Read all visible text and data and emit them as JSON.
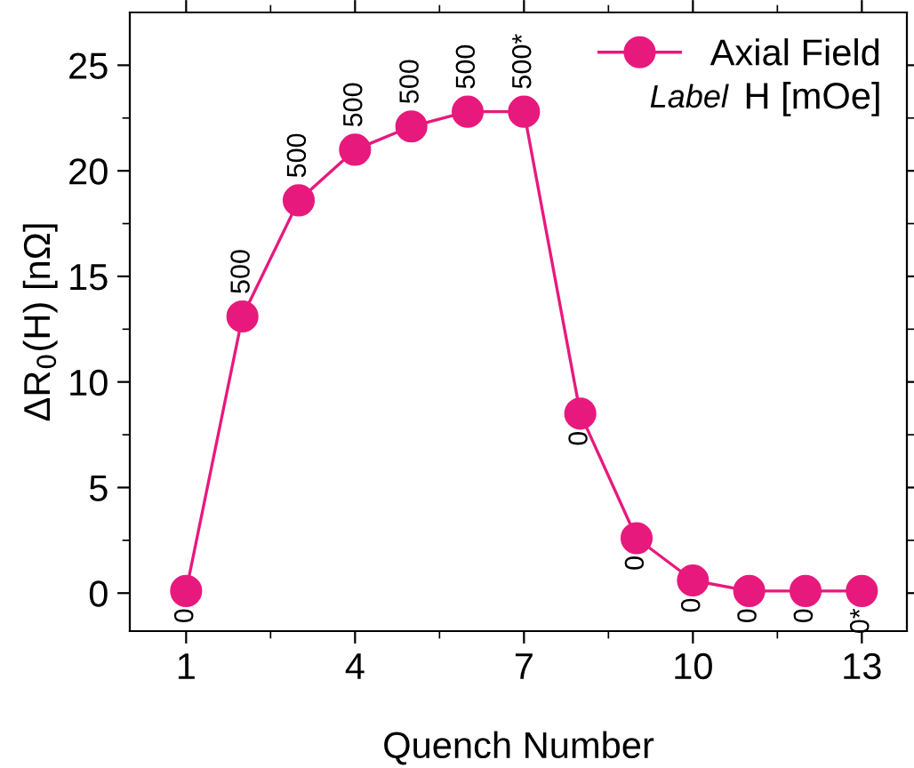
{
  "chart_data": {
    "type": "line",
    "xlabel": "Quench Number",
    "ylabel": "ΔR$_{0}$(H) [nΩ]",
    "x": [
      1,
      2,
      3,
      4,
      5,
      6,
      7,
      8,
      9,
      10,
      11,
      12,
      13
    ],
    "series": [
      {
        "name": "Axial Field",
        "color": "#e8197d",
        "values": [
          0.1,
          13.1,
          18.6,
          21.0,
          22.1,
          22.8,
          22.8,
          8.5,
          2.6,
          0.6,
          0.1,
          0.1,
          0.1
        ]
      }
    ],
    "annotations": [
      "Label",
      "H [mOe]",
      {
        "text": "0",
        "x": 1,
        "y": 0.1
      },
      {
        "text": "500",
        "x": 2,
        "y": 13.1
      },
      {
        "text": "500",
        "x": 3,
        "y": 18.6
      },
      {
        "text": "500",
        "x": 4,
        "y": 21.0
      },
      {
        "text": "500",
        "x": 5,
        "y": 22.1
      },
      {
        "text": "500",
        "x": 6,
        "y": 22.8
      },
      {
        "text": "500*",
        "x": 7,
        "y": 22.8
      },
      {
        "text": "0",
        "x": 8,
        "y": 8.5
      },
      {
        "text": "0",
        "x": 9,
        "y": 2.6
      },
      {
        "text": "0",
        "x": 10,
        "y": 0.6
      },
      {
        "text": "0",
        "x": 11,
        "y": 0.1
      },
      {
        "text": "0",
        "x": 12,
        "y": 0.1
      },
      {
        "text": "0*",
        "x": 13,
        "y": 0.1
      }
    ],
    "xlim": [
      0,
      13.8
    ],
    "ylim": [
      -1.8,
      27.5
    ],
    "xticks": [
      1,
      4,
      7,
      10,
      13
    ],
    "yticks": [
      0,
      5,
      10,
      15,
      20,
      25
    ],
    "marker": "circle",
    "line_style": "solid",
    "grid": false,
    "legend": "top right"
  }
}
